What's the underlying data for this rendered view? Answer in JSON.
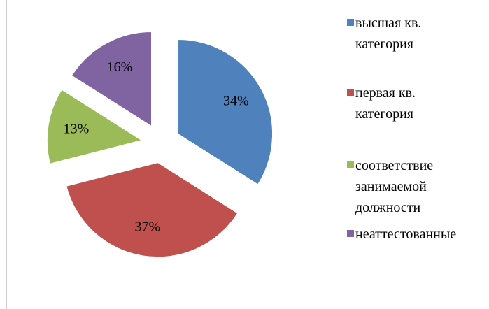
{
  "chart_data": {
    "type": "pie",
    "categories": [
      "высшая кв. категория",
      "первая кв. категория",
      "соответствие занимаемой должности",
      "неаттестованные"
    ],
    "values": [
      34,
      37,
      13,
      16
    ],
    "value_labels": [
      "34%",
      "37%",
      "13%",
      "16%"
    ],
    "colors": [
      "#4f81bd",
      "#c0504d",
      "#9bbb59",
      "#8064a2"
    ],
    "legend": "right"
  }
}
